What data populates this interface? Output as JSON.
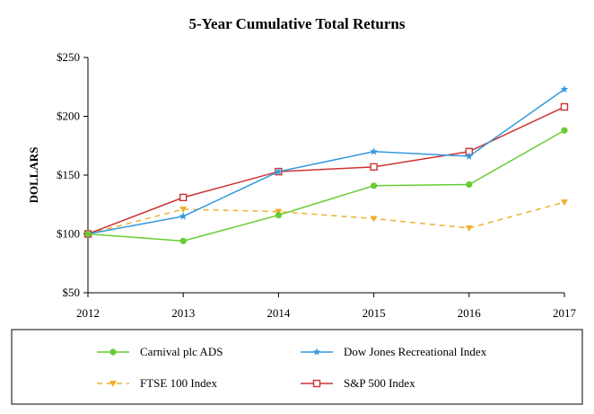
{
  "chart_data": {
    "type": "line",
    "title": "5-Year Cumulative Total Returns",
    "xlabel": "",
    "ylabel": "DOLLARS",
    "categories": [
      "2012",
      "2013",
      "2014",
      "2015",
      "2016",
      "2017"
    ],
    "y_ticks": [
      "$50",
      "$100",
      "$150",
      "$200",
      "$250"
    ],
    "ylim": [
      50,
      250
    ],
    "grid": false,
    "legend_position": "bottom",
    "series": [
      {
        "name": "Carnival plc ADS",
        "color": "#66cc33",
        "style": "solid",
        "marker": "circle",
        "values": [
          100,
          94,
          116,
          141,
          142,
          188
        ]
      },
      {
        "name": "Dow Jones Recreational Index",
        "color": "#3399dd",
        "style": "solid",
        "marker": "star",
        "values": [
          100,
          115,
          153,
          170,
          166,
          223
        ]
      },
      {
        "name": "FTSE 100 Index",
        "color": "#f0b030",
        "style": "dashed",
        "marker": "triangle-down",
        "values": [
          100,
          121,
          119,
          113,
          105,
          127
        ]
      },
      {
        "name": "S&P 500 Index",
        "color": "#cc3333",
        "style": "solid",
        "marker": "square-open",
        "values": [
          100,
          131,
          153,
          157,
          170,
          208
        ]
      }
    ]
  }
}
